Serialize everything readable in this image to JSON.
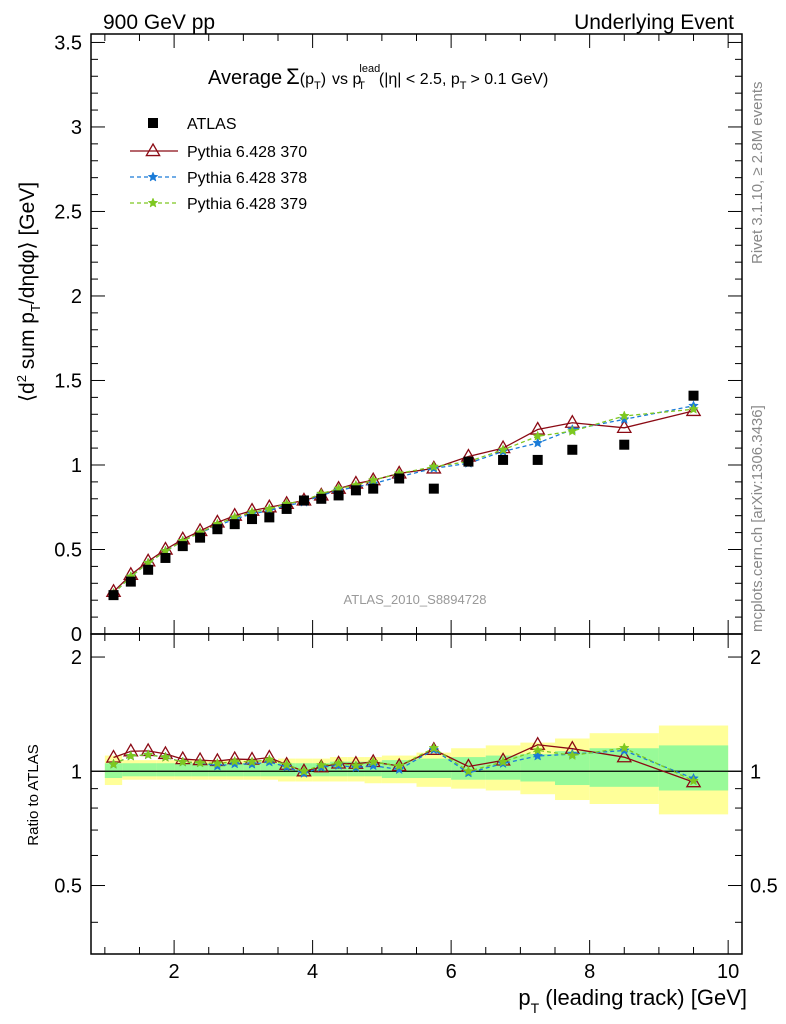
{
  "header": {
    "left": "900 GeV pp",
    "right": "Underlying Event"
  },
  "title": {
    "average": "Average",
    "sigma": "Σ",
    "pt_arg": "(p",
    "pt_arg_sub": "T",
    "pt_arg_close": ")",
    "vs": "vs p",
    "lead_sup": "lead",
    "lead_sub": "T",
    "cuts_open": "(|η| < 2.5, p",
    "cuts_sub": "T",
    "cuts_close": "> 0.1 GeV)"
  },
  "ylabel": {
    "part1": "⟨d",
    "sup": "2",
    "part2": " sum p",
    "sub": "T",
    "part3": "/dηdφ⟩ [GeV]"
  },
  "ratio_ylabel": "Ratio to ATLAS",
  "xlabel": {
    "p": "p",
    "sub": "T",
    "rest": " (leading track) [GeV]"
  },
  "side_top": "Rivet 3.1.10, ≥ 2.8M events",
  "side_bottom": "mcplots.cern.ch [arXiv:1306.3436]",
  "watermark": "ATLAS_2010_S8894728",
  "colors": {
    "atlas": "#000000",
    "p370": "#8b0a14",
    "p378": "#1a7bd8",
    "p379": "#7ec820",
    "band_inner": "#98fa98",
    "band_outer": "#ffff99"
  },
  "chart_data": {
    "type": "scatter",
    "xlim": [
      0.8,
      10.2
    ],
    "main_ylim": [
      0,
      3.55
    ],
    "ratio_ylim": [
      0.33,
      2.3
    ],
    "main_yticks": [
      "0",
      "0.5",
      "1",
      "1.5",
      "2",
      "2.5",
      "3",
      "3.5"
    ],
    "ratio_yticks": [
      "0.5",
      "1",
      "2"
    ],
    "xticks": [
      "2",
      "4",
      "6",
      "8",
      "10"
    ],
    "legend": [
      "ATLAS",
      "Pythia 6.428 370",
      "Pythia 6.428 378",
      "Pythia 6.428 379"
    ],
    "x": [
      1.125,
      1.375,
      1.625,
      1.875,
      2.125,
      2.375,
      2.625,
      2.875,
      3.125,
      3.375,
      3.625,
      3.875,
      4.125,
      4.375,
      4.625,
      4.875,
      5.25,
      5.75,
      6.25,
      6.75,
      7.25,
      7.75,
      8.5,
      9.5
    ],
    "bin_edges": [
      1.0,
      1.25,
      1.5,
      1.75,
      2.0,
      2.25,
      2.5,
      2.75,
      3.0,
      3.25,
      3.5,
      3.75,
      4.0,
      4.25,
      4.5,
      4.75,
      5.0,
      5.5,
      6.0,
      6.5,
      7.0,
      7.5,
      8.0,
      9.0,
      10.0
    ],
    "series": [
      {
        "name": "ATLAS",
        "values": [
          0.23,
          0.31,
          0.38,
          0.45,
          0.52,
          0.57,
          0.62,
          0.65,
          0.68,
          0.69,
          0.74,
          0.79,
          0.8,
          0.82,
          0.85,
          0.86,
          0.92,
          0.86,
          1.02,
          1.03,
          1.03,
          1.09,
          1.12,
          1.41
        ]
      },
      {
        "name": "Pythia 6.428 370",
        "values": [
          0.25,
          0.35,
          0.43,
          0.5,
          0.56,
          0.61,
          0.66,
          0.7,
          0.73,
          0.75,
          0.77,
          0.79,
          0.82,
          0.86,
          0.89,
          0.91,
          0.95,
          0.98,
          1.05,
          1.1,
          1.21,
          1.25,
          1.22,
          1.32
        ]
      },
      {
        "name": "Pythia 6.428 378",
        "values": [
          0.24,
          0.34,
          0.42,
          0.49,
          0.55,
          0.6,
          0.64,
          0.68,
          0.71,
          0.73,
          0.76,
          0.78,
          0.82,
          0.85,
          0.87,
          0.89,
          0.93,
          0.98,
          1.01,
          1.08,
          1.13,
          1.21,
          1.27,
          1.35
        ]
      },
      {
        "name": "Pythia 6.428 379",
        "values": [
          0.24,
          0.34,
          0.42,
          0.49,
          0.55,
          0.6,
          0.65,
          0.69,
          0.72,
          0.74,
          0.77,
          0.79,
          0.83,
          0.86,
          0.88,
          0.91,
          0.95,
          0.99,
          1.02,
          1.09,
          1.17,
          1.2,
          1.29,
          1.33
        ]
      }
    ],
    "ratio_band_inner": [
      [
        0.96,
        1.05
      ],
      [
        0.97,
        1.05
      ],
      [
        0.97,
        1.05
      ],
      [
        0.97,
        1.05
      ],
      [
        0.97,
        1.05
      ],
      [
        0.97,
        1.05
      ],
      [
        0.97,
        1.05
      ],
      [
        0.97,
        1.05
      ],
      [
        0.97,
        1.05
      ],
      [
        0.97,
        1.05
      ],
      [
        0.97,
        1.05
      ],
      [
        0.97,
        1.05
      ],
      [
        0.97,
        1.05
      ],
      [
        0.97,
        1.06
      ],
      [
        0.97,
        1.06
      ],
      [
        0.97,
        1.06
      ],
      [
        0.96,
        1.07
      ],
      [
        0.96,
        1.08
      ],
      [
        0.95,
        1.09
      ],
      [
        0.95,
        1.1
      ],
      [
        0.94,
        1.11
      ],
      [
        0.92,
        1.13
      ],
      [
        0.91,
        1.15
      ],
      [
        0.89,
        1.17
      ]
    ],
    "ratio_band_outer": [
      [
        0.92,
        1.1
      ],
      [
        0.95,
        1.07
      ],
      [
        0.95,
        1.07
      ],
      [
        0.95,
        1.07
      ],
      [
        0.95,
        1.07
      ],
      [
        0.95,
        1.07
      ],
      [
        0.95,
        1.07
      ],
      [
        0.95,
        1.07
      ],
      [
        0.95,
        1.07
      ],
      [
        0.95,
        1.07
      ],
      [
        0.94,
        1.08
      ],
      [
        0.94,
        1.08
      ],
      [
        0.94,
        1.08
      ],
      [
        0.94,
        1.09
      ],
      [
        0.94,
        1.09
      ],
      [
        0.93,
        1.09
      ],
      [
        0.93,
        1.1
      ],
      [
        0.91,
        1.12
      ],
      [
        0.9,
        1.15
      ],
      [
        0.89,
        1.17
      ],
      [
        0.87,
        1.19
      ],
      [
        0.84,
        1.22
      ],
      [
        0.82,
        1.26
      ],
      [
        0.77,
        1.32
      ]
    ]
  }
}
